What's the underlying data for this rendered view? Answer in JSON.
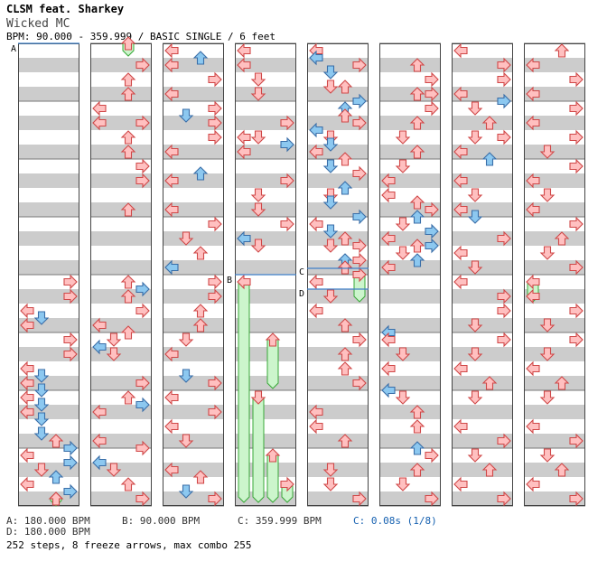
{
  "header": {
    "artist": "CLSM feat. Sharkey",
    "title": "Wicked MC",
    "info": "BPM: 90.000 - 359.999 / BASIC SINGLE / 6 feet"
  },
  "markers": {
    "a": "A",
    "b": "B",
    "c": "C",
    "d": "D"
  },
  "legend": {
    "a": "A: 180.000 BPM",
    "b": "B: 90.000 BPM",
    "c": "C: 359.999 BPM",
    "c_stop": "C: 0.08s (1/8)",
    "d": "D: 180.000 BPM"
  },
  "summary": "252 steps, 8 freeze arrows, max combo 255",
  "colors": {
    "arrow_red_fill": "#ffc0c0",
    "arrow_red_stroke": "#d04848",
    "arrow_blue_fill": "#8cc8f0",
    "arrow_blue_stroke": "#3a6ea8",
    "freeze_fill": "#ccf5cc",
    "freeze_stroke": "#38a838",
    "stripe": "#cccccc",
    "stop_text": "#1560b0"
  },
  "chart_data": {
    "type": "step-chart",
    "mode": "BASIC SINGLE",
    "difficulty_feet": 6,
    "steps": 252,
    "freeze_arrows": 8,
    "max_combo": 255,
    "bpm_changes": [
      {
        "marker": "A",
        "bpm": 180.0
      },
      {
        "marker": "B",
        "bpm": 90.0
      },
      {
        "marker": "C",
        "bpm": 359.999
      },
      {
        "marker": "D",
        "bpm": 180.0
      }
    ],
    "stops": [
      {
        "marker": "C",
        "seconds": 0.08,
        "beat": "1/8"
      }
    ]
  }
}
